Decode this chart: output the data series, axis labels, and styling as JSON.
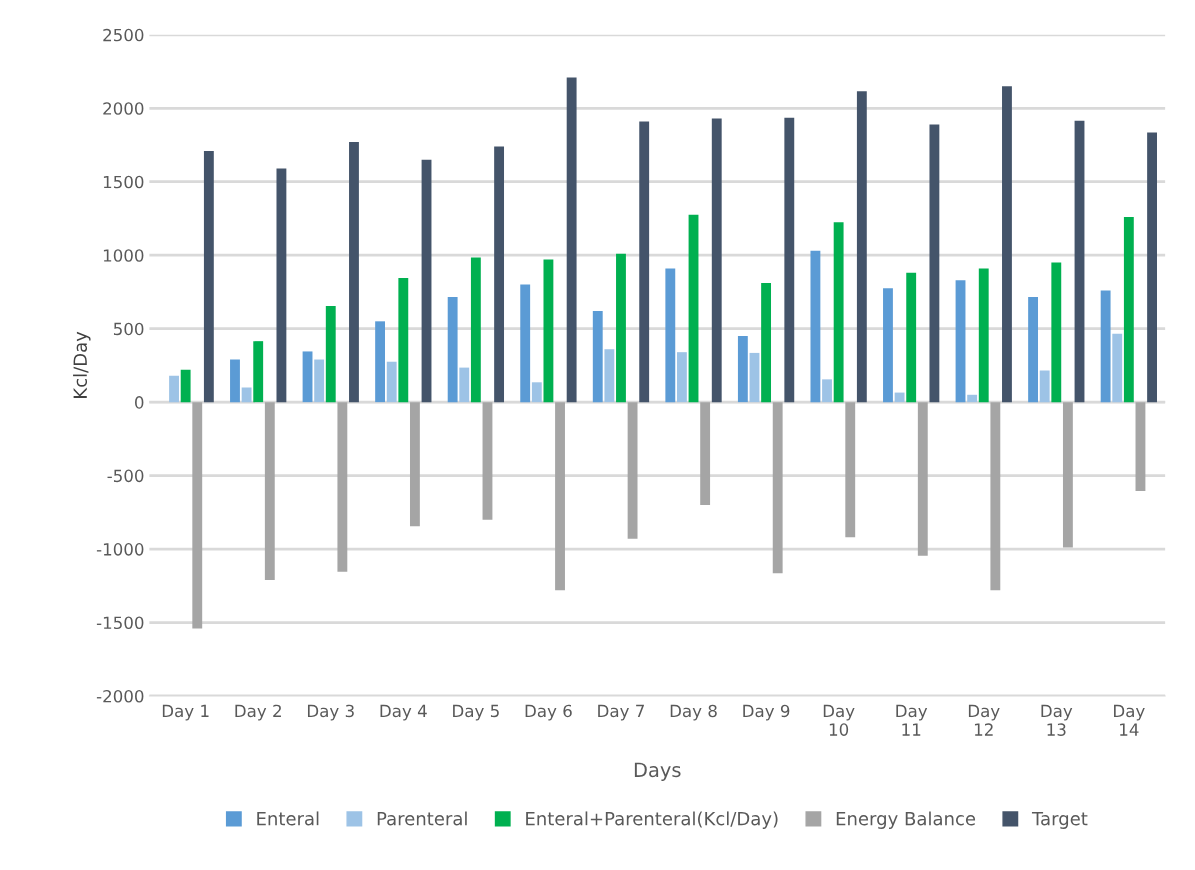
{
  "chart_data": {
    "type": "bar",
    "xlabel": "Days",
    "ylabel": "Kcl/Day",
    "categories": [
      "Day 1",
      "Day 2",
      "Day 3",
      "Day 4",
      "Day 5",
      "Day 6",
      "Day 7",
      "Day 8",
      "Day 9",
      "Day 10",
      "Day 11",
      "Day 12",
      "Day 13",
      "Day 14"
    ],
    "series": [
      {
        "name": "Enteral",
        "color": "#5b9bd5",
        "values": [
          0,
          290,
          345,
          550,
          715,
          800,
          620,
          910,
          450,
          1030,
          775,
          830,
          715,
          760
        ]
      },
      {
        "name": "Parenteral",
        "color": "#9dc3e6",
        "values": [
          180,
          100,
          290,
          275,
          235,
          135,
          360,
          340,
          335,
          155,
          65,
          50,
          215,
          465
        ]
      },
      {
        "name": "Enteral+Parenteral(Kcl/Day)",
        "color": "#00b050",
        "values": [
          220,
          415,
          655,
          845,
          985,
          970,
          1010,
          1275,
          810,
          1225,
          880,
          910,
          950,
          1260
        ]
      },
      {
        "name": "Energy Balance",
        "color": "#a5a5a5",
        "values": [
          -1540,
          -1210,
          -1155,
          -845,
          -800,
          -1280,
          -930,
          -700,
          -1165,
          -920,
          -1045,
          -1280,
          -990,
          -605
        ]
      },
      {
        "name": "Target",
        "color": "#44546a",
        "values": [
          1710,
          1590,
          1770,
          1650,
          1740,
          2210,
          1910,
          1930,
          1935,
          2115,
          1890,
          2150,
          1915,
          1835
        ]
      }
    ],
    "ylim": [
      -2000,
      2500
    ],
    "yticks": [
      -2000,
      -1500,
      -1000,
      -500,
      0,
      500,
      1000,
      1500,
      2000,
      2500
    ],
    "grid": "y",
    "legend": "bottom"
  }
}
